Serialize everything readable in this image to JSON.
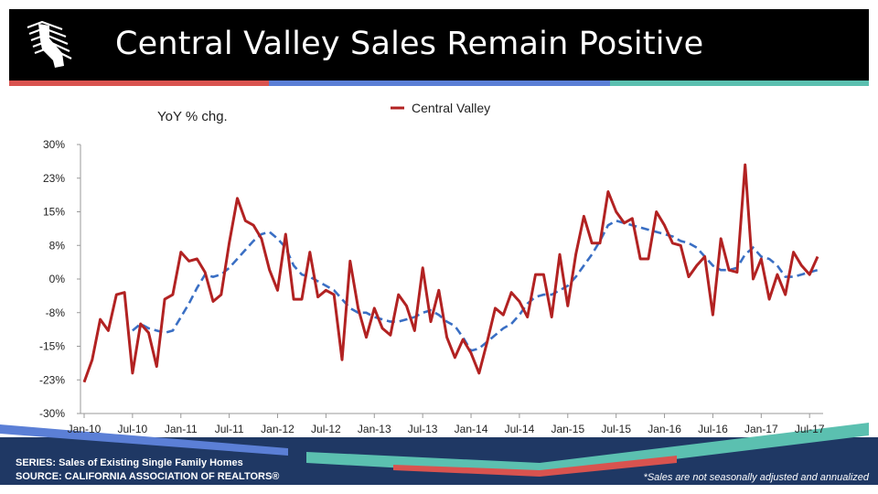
{
  "header": {
    "title": "Central Valley Sales Remain Positive"
  },
  "colors": {
    "stripe_red": "#d9534f",
    "stripe_blue": "#5b7fd6",
    "stripe_teal": "#5bc0b0",
    "series_red": "#b22222",
    "trend_blue": "#3a6fc4",
    "footer_navy": "#1f3864"
  },
  "footer": {
    "series_label": "SERIES: Sales of Existing Single Family Homes",
    "source_label": "SOURCE:  CALIFORNIA ASSOCIATION OF REALTORS®",
    "note": "*Sales are not seasonally adjusted and annualized"
  },
  "chart_data": {
    "type": "line",
    "ylabel": "YoY % chg.",
    "y_ticks": [
      "30%",
      "23%",
      "15%",
      "8%",
      "0%",
      "-8%",
      "-15%",
      "-23%",
      "-30%"
    ],
    "ylim": [
      -30,
      30
    ],
    "x_ticks": [
      "Jan-10",
      "Jul-10",
      "Jan-11",
      "Jul-11",
      "Jan-12",
      "Jul-12",
      "Jan-13",
      "Jul-13",
      "Jan-14",
      "Jul-14",
      "Jan-15",
      "Jul-15",
      "Jan-16",
      "Jul-16",
      "Jan-17",
      "Jul-17"
    ],
    "x_range": [
      "Jan-10",
      "Sep-17"
    ],
    "legend": {
      "position": "top-center"
    },
    "series": [
      {
        "name": "Central Valley",
        "style": "solid",
        "values": [
          -23,
          -18,
          -9,
          -11.5,
          -3.5,
          -3,
          -21,
          -10,
          -12,
          -19.5,
          -4.5,
          -3.5,
          6,
          4,
          4.5,
          1.5,
          -5,
          -3.5,
          8,
          18,
          13,
          12,
          9,
          2,
          -2.5,
          10,
          -4.5,
          -4.5,
          6,
          -4,
          -2.5,
          -3.5,
          -18,
          4,
          -6.5,
          -13,
          -6.5,
          -11,
          -12.5,
          -3.5,
          -6,
          -11.5,
          2.5,
          -9.5,
          -2.5,
          -13,
          -17.5,
          -13.5,
          -16.5,
          -21,
          -14,
          -6.5,
          -8,
          -3,
          -5,
          -8.5,
          1,
          1,
          -8.5,
          5.5,
          -6,
          5.5,
          14,
          8,
          8,
          19.5,
          15,
          12.5,
          13.5,
          4.5,
          4.5,
          15,
          12,
          8,
          7.5,
          0.5,
          3,
          5,
          -8,
          9,
          2,
          1.5,
          25.5,
          0,
          4.5,
          -4.5,
          1,
          -3.5,
          6,
          3,
          1,
          5
        ]
      },
      {
        "name": "",
        "style": "dashed",
        "values": [
          null,
          null,
          null,
          null,
          null,
          null,
          -11.5,
          -10,
          -11,
          -11.5,
          -12,
          -11.5,
          -8.5,
          -5.5,
          -2,
          1,
          0.5,
          1,
          2.5,
          4.5,
          6.5,
          8.5,
          10,
          10.5,
          9,
          7,
          3,
          1,
          0.5,
          -0.5,
          -1.5,
          -2.5,
          -4.5,
          -6.5,
          -7.5,
          -7.5,
          -8.5,
          -9,
          -9.5,
          -9.5,
          -9,
          -8.5,
          -7.5,
          -7,
          -8,
          -9.5,
          -10.5,
          -13,
          -16,
          -15.5,
          -14,
          -12.5,
          -11,
          -10,
          -8,
          -5.5,
          -4,
          -3.5,
          -3.5,
          -2.5,
          -1.5,
          0.5,
          3,
          5.5,
          8.5,
          12,
          13,
          12.5,
          12,
          11.5,
          11,
          10.5,
          10,
          9.5,
          8.5,
          8,
          7,
          5,
          3,
          2,
          2,
          2.5,
          5.5,
          7,
          5,
          4.5,
          3,
          0.5,
          0.5,
          1,
          1.5,
          2
        ]
      }
    ]
  }
}
